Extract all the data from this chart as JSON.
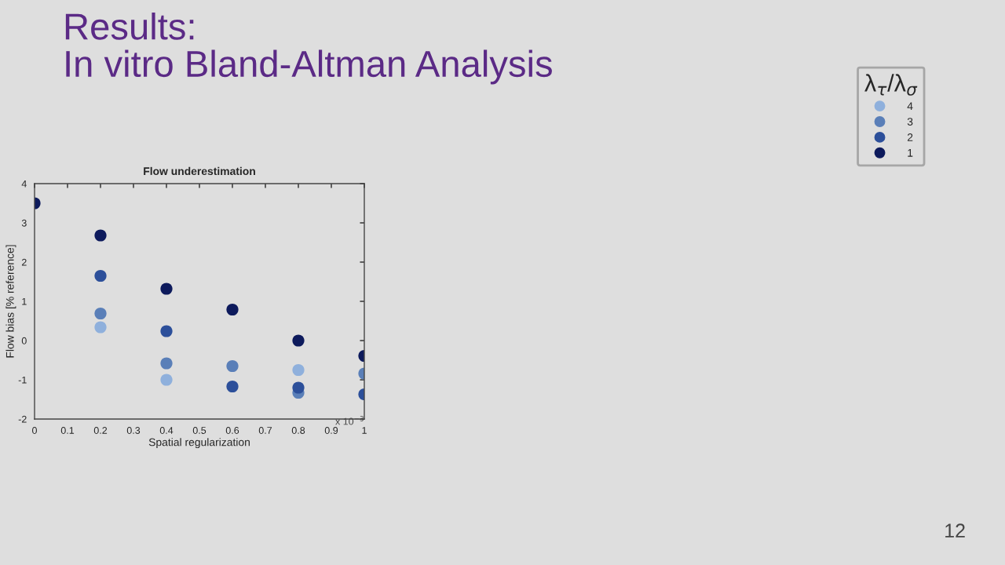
{
  "chart_data": {
    "type": "scatter",
    "title": "Results:\nIn vitro Bland-Altman Analysis",
    "subtitle": "Flow underestimation",
    "xlabel": "Spatial regularization",
    "ylabel": "Flow bias [% reference]",
    "legend_title": "λ$_{τ}$/λ$_{σ}$",
    "x": [
      0,
      0.2,
      0.4,
      0.6,
      0.8,
      1
    ],
    "series": [
      {
        "name": "4",
        "color": "#8fb0dc",
        "values": [
          null,
          0.34,
          -1.0,
          null,
          -0.75,
          null
        ]
      },
      {
        "name": "3",
        "color": "#5a7fb8",
        "values": [
          null,
          0.69,
          -0.58,
          -0.65,
          -1.33,
          -0.84
        ]
      },
      {
        "name": "2",
        "color": "#2c4f9a",
        "values": [
          null,
          1.65,
          0.24,
          -1.17,
          -1.2,
          -1.37
        ]
      },
      {
        "name": "1",
        "color": "#0d1a5c",
        "values": [
          3.5,
          2.68,
          1.32,
          0.79,
          0.0,
          -0.39
        ]
      }
    ],
    "xlim": [
      0,
      1
    ],
    "xticks": [
      0,
      0.1,
      0.2,
      0.3,
      0.4,
      0.5,
      0.6,
      0.7,
      0.8,
      0.9,
      1
    ],
    "ylim": [
      -2,
      4
    ],
    "yticks": [
      -2,
      -1,
      0,
      1,
      2,
      3,
      4
    ],
    "marker": "circle",
    "grid": false,
    "legend": "top right",
    "annotations": [
      "x 10$^{−3}$",
      "12"
    ]
  }
}
